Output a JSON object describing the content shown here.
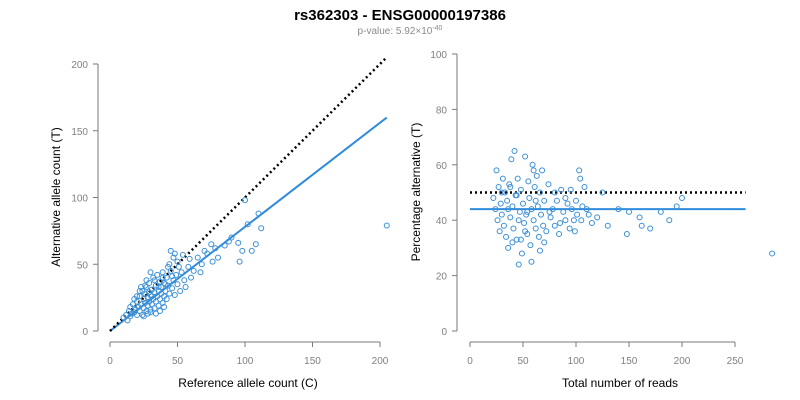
{
  "title": "rs362303 - ENSG00000197386",
  "subtitle_prefix": "p-value: 5.92×10",
  "subtitle_exponent": "-40",
  "colors": {
    "points": "#3a8fd6",
    "fit": "#2f8bdc",
    "reference": "#000000"
  },
  "chart_data": [
    {
      "type": "scatter",
      "xlabel": "Reference allele count (C)",
      "ylabel": "Alternative allele count (T)",
      "xlim": [
        0,
        205
      ],
      "ylim": [
        0,
        200
      ],
      "xticks": [
        0,
        50,
        100,
        150,
        200
      ],
      "yticks": [
        0,
        50,
        100,
        150,
        200
      ],
      "grid": false,
      "series": [
        {
          "points": [
            [
              10,
              10
            ],
            [
              12,
              12
            ],
            [
              13,
              8
            ],
            [
              14,
              15
            ],
            [
              15,
              11
            ],
            [
              15,
              18
            ],
            [
              16,
              13
            ],
            [
              17,
              20
            ],
            [
              18,
              14
            ],
            [
              18,
              24
            ],
            [
              19,
              16
            ],
            [
              20,
              12
            ],
            [
              20,
              22
            ],
            [
              21,
              18
            ],
            [
              22,
              15
            ],
            [
              22,
              26
            ],
            [
              23,
              20
            ],
            [
              24,
              12
            ],
            [
              24,
              30
            ],
            [
              25,
              17
            ],
            [
              25,
              24
            ],
            [
              26,
              21
            ],
            [
              26,
              28
            ],
            [
              27,
              15
            ],
            [
              27,
              33
            ],
            [
              28,
              19
            ],
            [
              28,
              25
            ],
            [
              29,
              22
            ],
            [
              29,
              36
            ],
            [
              30,
              14
            ],
            [
              30,
              27
            ],
            [
              31,
              20
            ],
            [
              31,
              31
            ],
            [
              32,
              24
            ],
            [
              32,
              40
            ],
            [
              33,
              17
            ],
            [
              33,
              29
            ],
            [
              34,
              22
            ],
            [
              34,
              34
            ],
            [
              35,
              26
            ],
            [
              35,
              42
            ],
            [
              36,
              19
            ],
            [
              36,
              30
            ],
            [
              37,
              24
            ],
            [
              37,
              37
            ],
            [
              38,
              28
            ],
            [
              38,
              33
            ],
            [
              39,
              21
            ],
            [
              40,
              26
            ],
            [
              40,
              36
            ],
            [
              41,
              30
            ],
            [
              42,
              24
            ],
            [
              42,
              40
            ],
            [
              43,
              34
            ],
            [
              44,
              28
            ],
            [
              45,
              60
            ],
            [
              45,
              45
            ],
            [
              46,
              32
            ],
            [
              47,
              38
            ],
            [
              48,
              58
            ],
            [
              48,
              27
            ],
            [
              49,
              42
            ],
            [
              50,
              35
            ],
            [
              50,
              52
            ],
            [
              52,
              30
            ],
            [
              53,
              44
            ],
            [
              55,
              38
            ],
            [
              56,
              33
            ],
            [
              58,
              48
            ],
            [
              60,
              40
            ],
            [
              62,
              45
            ],
            [
              65,
              55
            ],
            [
              68,
              50
            ],
            [
              70,
              60
            ],
            [
              72,
              58
            ],
            [
              75,
              65
            ],
            [
              78,
              62
            ],
            [
              80,
              55
            ],
            [
              85,
              64
            ],
            [
              90,
              70
            ],
            [
              95,
              66
            ],
            [
              100,
              98
            ],
            [
              98,
              60
            ],
            [
              102,
              80
            ],
            [
              105,
              60
            ],
            [
              108,
              65
            ],
            [
              110,
              88
            ],
            [
              112,
              77
            ],
            [
              205,
              79
            ],
            [
              22,
              30
            ],
            [
              26,
              34
            ],
            [
              29,
              29
            ],
            [
              31,
              26
            ],
            [
              33,
              38
            ],
            [
              36,
              33
            ],
            [
              39,
              44
            ],
            [
              41,
              35
            ],
            [
              44,
              50
            ],
            [
              46,
              41
            ],
            [
              25,
              11
            ],
            [
              28,
              13
            ],
            [
              30,
              16
            ],
            [
              34,
              13
            ],
            [
              37,
              15
            ],
            [
              40,
              18
            ],
            [
              20,
              26
            ],
            [
              23,
              33
            ],
            [
              27,
              38
            ],
            [
              30,
              44
            ],
            [
              96,
              52
            ],
            [
              88,
              67
            ],
            [
              76,
              52
            ],
            [
              67,
              44
            ],
            [
              59,
              54
            ],
            [
              54,
              57
            ],
            [
              51,
              48
            ],
            [
              47,
              55
            ],
            [
              43,
              48
            ],
            [
              39,
              40
            ]
          ]
        },
        {
          "name": "",
          "kind": "fitted-line",
          "coefficients": {
            "intercept": 0,
            "slope": 0.78
          }
        },
        {
          "name": "",
          "kind": "reference-line",
          "coefficients": {
            "intercept": 0,
            "slope": 1
          }
        }
      ]
    },
    {
      "type": "scatter",
      "xlabel": "Total number of reads",
      "ylabel": "Percentage alternative (T)",
      "xlim": [
        0,
        285
      ],
      "ylim": [
        0,
        100
      ],
      "xticks": [
        0,
        50,
        100,
        150,
        200,
        250
      ],
      "yticks": [
        0,
        20,
        40,
        60,
        80,
        100
      ],
      "grid": false,
      "series": [
        {
          "points": [
            [
              22,
              48
            ],
            [
              24,
              44
            ],
            [
              25,
              58
            ],
            [
              26,
              40
            ],
            [
              27,
              52
            ],
            [
              28,
              36
            ],
            [
              29,
              46
            ],
            [
              30,
              42
            ],
            [
              31,
              55
            ],
            [
              32,
              38
            ],
            [
              33,
              50
            ],
            [
              34,
              34
            ],
            [
              35,
              47
            ],
            [
              36,
              30
            ],
            [
              37,
              53
            ],
            [
              38,
              41
            ],
            [
              39,
              62
            ],
            [
              40,
              45
            ],
            [
              41,
              37
            ],
            [
              42,
              65
            ],
            [
              43,
              49
            ],
            [
              44,
              33
            ],
            [
              45,
              55
            ],
            [
              46,
              24
            ],
            [
              47,
              43
            ],
            [
              48,
              51
            ],
            [
              49,
              28
            ],
            [
              50,
              46
            ],
            [
              51,
              39
            ],
            [
              52,
              63
            ],
            [
              53,
              42
            ],
            [
              54,
              35
            ],
            [
              55,
              54
            ],
            [
              56,
              48
            ],
            [
              57,
              31
            ],
            [
              58,
              44
            ],
            [
              59,
              60
            ],
            [
              60,
              40
            ],
            [
              61,
              52
            ],
            [
              62,
              37
            ],
            [
              63,
              56
            ],
            [
              64,
              45
            ],
            [
              65,
              34
            ],
            [
              66,
              50
            ],
            [
              67,
              42
            ],
            [
              68,
              58
            ],
            [
              69,
              38
            ],
            [
              70,
              47
            ],
            [
              72,
              36
            ],
            [
              74,
              53
            ],
            [
              76,
              41
            ],
            [
              78,
              44
            ],
            [
              80,
              38
            ],
            [
              82,
              47
            ],
            [
              84,
              35
            ],
            [
              86,
              51
            ],
            [
              88,
              43
            ],
            [
              90,
              40
            ],
            [
              92,
              46
            ],
            [
              94,
              37
            ],
            [
              96,
              44
            ],
            [
              98,
              40
            ],
            [
              100,
              47
            ],
            [
              101,
              42
            ],
            [
              103,
              58
            ],
            [
              104,
              55
            ],
            [
              106,
              45
            ],
            [
              108,
              52
            ],
            [
              110,
              44
            ],
            [
              115,
              39
            ],
            [
              120,
              41
            ],
            [
              125,
              50
            ],
            [
              130,
              38
            ],
            [
              140,
              44
            ],
            [
              148,
              35
            ],
            [
              150,
              43
            ],
            [
              160,
              41
            ],
            [
              162,
              38
            ],
            [
              170,
              37
            ],
            [
              180,
              43
            ],
            [
              188,
              40
            ],
            [
              195,
              45
            ],
            [
              200,
              48
            ],
            [
              285,
              28
            ],
            [
              58,
              25
            ],
            [
              66,
              29
            ],
            [
              48,
              33
            ],
            [
              40,
              32
            ],
            [
              54,
              43
            ],
            [
              62,
              47
            ],
            [
              70,
              32
            ],
            [
              80,
              50
            ],
            [
              90,
              48
            ],
            [
              99,
              36
            ],
            [
              105,
              40
            ],
            [
              112,
              42
            ],
            [
              44,
              49
            ],
            [
              36,
              44
            ],
            [
              60,
              58
            ],
            [
              75,
              43
            ],
            [
              85,
              39
            ],
            [
              95,
              51
            ],
            [
              52,
              36
            ],
            [
              46,
              40
            ],
            [
              38,
              52
            ],
            [
              30,
              50
            ]
          ]
        },
        {
          "name": "",
          "kind": "fitted-line",
          "coefficients": {
            "intercept": 44,
            "slope": 0
          }
        },
        {
          "name": "",
          "kind": "reference-line",
          "coefficients": {
            "intercept": 50,
            "slope": 0
          }
        }
      ]
    }
  ]
}
